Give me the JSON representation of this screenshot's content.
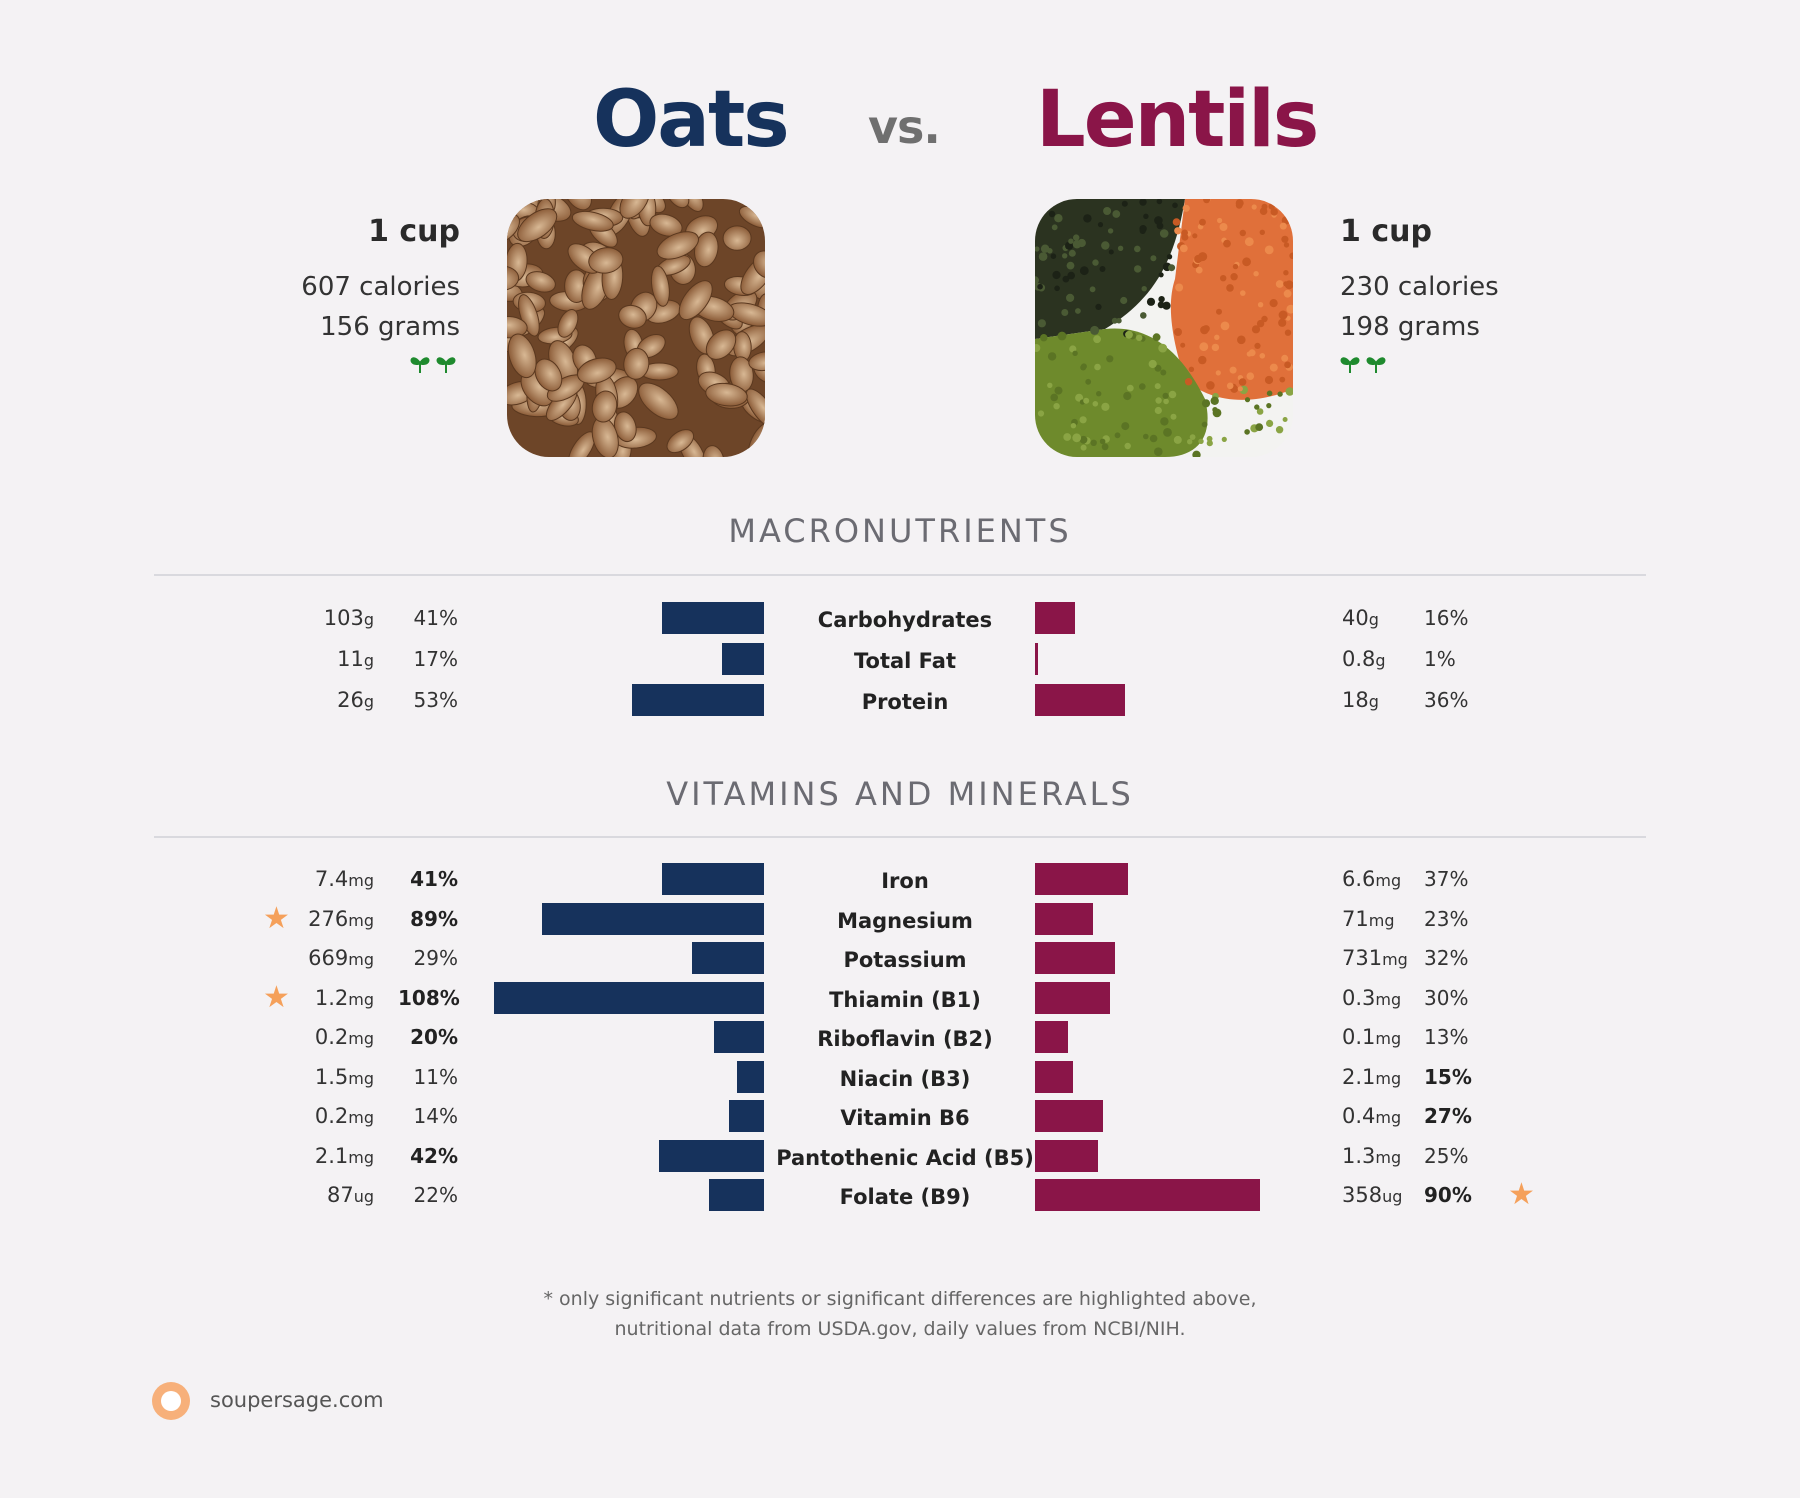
{
  "header": {
    "left_food": "Oats",
    "vs": "vs.",
    "right_food": "Lentils",
    "left_color": "#16325c",
    "right_color": "#8a1548"
  },
  "left_serving": {
    "unit": "1 cup",
    "calories": "607 calories",
    "grams": "156 grams",
    "diet_icon": "sprout-icon"
  },
  "right_serving": {
    "unit": "1 cup",
    "calories": "230 calories",
    "grams": "198 grams",
    "diet_icon": "sprout-icon"
  },
  "sections": {
    "macro": "MACRONUTRIENTS",
    "vitamins": "VITAMINS AND MINERALS"
  },
  "chart_data": [
    {
      "type": "bar",
      "title": "MACRONUTRIENTS",
      "categories": [
        "Carbohydrates",
        "Total Fat",
        "Protein"
      ],
      "series": [
        {
          "name": "Oats",
          "amounts": [
            "103",
            "11",
            "26"
          ],
          "units": [
            "g",
            "g",
            "g"
          ],
          "percent_labels": [
            "41%",
            "17%",
            "53%"
          ],
          "values": [
            41,
            17,
            53
          ],
          "bold": [
            false,
            false,
            false
          ],
          "star": [
            false,
            false,
            false
          ]
        },
        {
          "name": "Lentils",
          "amounts": [
            "40",
            "0.8",
            "18"
          ],
          "units": [
            "g",
            "g",
            "g"
          ],
          "percent_labels": [
            "16%",
            "1%",
            "36%"
          ],
          "values": [
            16,
            1,
            36
          ],
          "bold": [
            false,
            false,
            false
          ],
          "star": [
            false,
            false,
            false
          ]
        }
      ]
    },
    {
      "type": "bar",
      "title": "VITAMINS AND MINERALS",
      "categories": [
        "Iron",
        "Magnesium",
        "Potassium",
        "Thiamin (B1)",
        "Riboflavin (B2)",
        "Niacin (B3)",
        "Vitamin B6",
        "Pantothenic Acid (B5)",
        "Folate (B9)"
      ],
      "series": [
        {
          "name": "Oats",
          "amounts": [
            "7.4",
            "276",
            "669",
            "1.2",
            "0.2",
            "1.5",
            "0.2",
            "2.1",
            "87"
          ],
          "units": [
            "mg",
            "mg",
            "mg",
            "mg",
            "mg",
            "mg",
            "mg",
            "mg",
            "ug"
          ],
          "percent_labels": [
            "41%",
            "89%",
            "29%",
            "108%",
            "20%",
            "11%",
            "14%",
            "42%",
            "22%"
          ],
          "values": [
            41,
            89,
            29,
            108,
            20,
            11,
            14,
            42,
            22
          ],
          "bold": [
            true,
            true,
            false,
            true,
            true,
            false,
            false,
            true,
            false
          ],
          "star": [
            false,
            true,
            false,
            true,
            false,
            false,
            false,
            false,
            false
          ]
        },
        {
          "name": "Lentils",
          "amounts": [
            "6.6",
            "71",
            "731",
            "0.3",
            "0.1",
            "2.1",
            "0.4",
            "1.3",
            "358"
          ],
          "units": [
            "mg",
            "mg",
            "mg",
            "mg",
            "mg",
            "mg",
            "mg",
            "mg",
            "ug"
          ],
          "percent_labels": [
            "37%",
            "23%",
            "32%",
            "30%",
            "13%",
            "15%",
            "27%",
            "25%",
            "90%"
          ],
          "values": [
            37,
            23,
            32,
            30,
            13,
            15,
            27,
            25,
            90
          ],
          "bold": [
            false,
            false,
            false,
            false,
            false,
            true,
            true,
            false,
            true
          ],
          "star": [
            false,
            false,
            false,
            false,
            false,
            false,
            false,
            false,
            true
          ]
        }
      ]
    }
  ],
  "footer": {
    "note_line1": "* only significant nutrients or significant differences are highlighted above,",
    "note_line2": "nutritional data from USDA.gov, daily values from NCBI/NIH.",
    "site": "soupersage.com"
  }
}
